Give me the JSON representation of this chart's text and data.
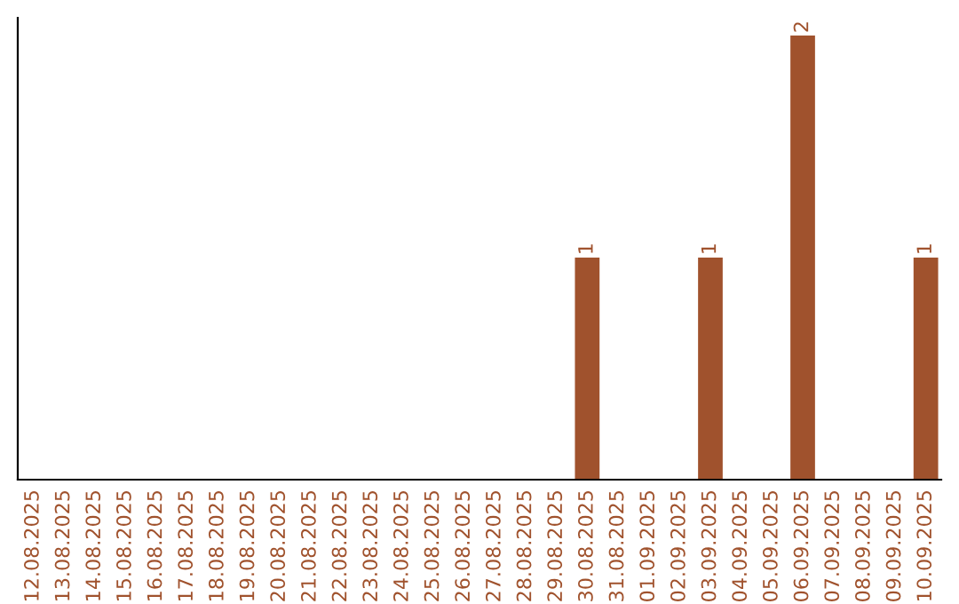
{
  "chart_data": {
    "type": "bar",
    "categories": [
      "12.08.2025",
      "13.08.2025",
      "14.08.2025",
      "15.08.2025",
      "16.08.2025",
      "17.08.2025",
      "18.08.2025",
      "19.08.2025",
      "20.08.2025",
      "21.08.2025",
      "22.08.2025",
      "23.08.2025",
      "24.08.2025",
      "25.08.2025",
      "26.08.2025",
      "27.08.2025",
      "28.08.2025",
      "29.08.2025",
      "30.08.2025",
      "31.08.2025",
      "01.09.2025",
      "02.09.2025",
      "03.09.2025",
      "04.09.2025",
      "05.09.2025",
      "06.09.2025",
      "07.09.2025",
      "08.09.2025",
      "09.09.2025",
      "10.09.2025"
    ],
    "values": [
      null,
      null,
      null,
      null,
      null,
      null,
      null,
      null,
      null,
      null,
      null,
      null,
      null,
      null,
      null,
      null,
      null,
      null,
      1,
      null,
      null,
      null,
      1,
      null,
      null,
      2,
      null,
      null,
      null,
      1
    ],
    "data_labels": true,
    "color": "#a0522d",
    "ylim": [
      0,
      2.08
    ],
    "tick_labels": "x",
    "grid": false,
    "legend": false
  }
}
